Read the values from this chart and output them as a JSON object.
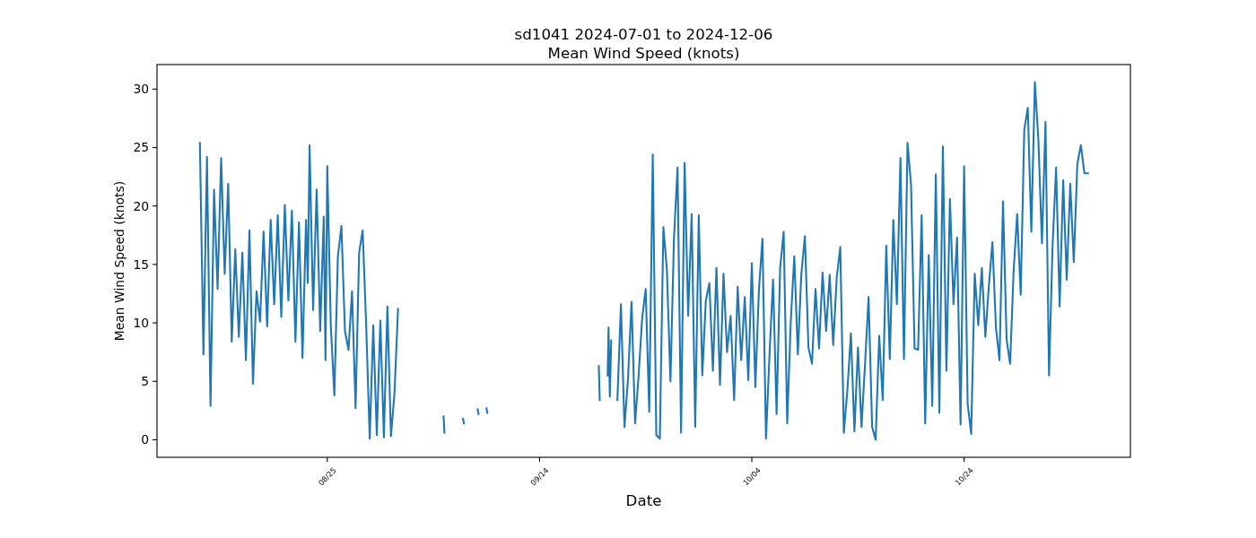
{
  "chart_data": {
    "type": "line",
    "title": "sd1041 2024-07-01 to 2024-12-06",
    "subtitle": "Mean Wind Speed (knots)",
    "xlabel": "Date",
    "ylabel": "Mean Wind Speed (knots)",
    "x": [
      "--08-13T00:00",
      "--08-13T08:00",
      "--08-13T16:00",
      "--08-14T00:00",
      "--08-14T08:00",
      "--08-14T16:00",
      "--08-15T00:00",
      "--08-15T08:00",
      "--08-15T16:00",
      "--08-16T00:00",
      "--08-16T08:00",
      "--08-16T16:00",
      "--08-17T00:00",
      "--08-17T08:00",
      "--08-17T16:00",
      "--08-18T00:00",
      "--08-18T08:00",
      "--08-18T16:00",
      "--08-19T00:00",
      "--08-19T08:00",
      "--08-19T16:00",
      "--08-20T00:00",
      "--08-20T08:00",
      "--08-20T16:00",
      "--08-21T00:00",
      "--08-21T08:00",
      "--08-21T16:00",
      "--08-22T00:00",
      "--08-22T08:00",
      "--08-22T16:00",
      "--08-23T00:00",
      "--08-23T04:00",
      "--08-23T08:00",
      "--08-23T16:00",
      "--08-24T00:00",
      "--08-24T08:00",
      "--08-24T16:00",
      "--08-24T20:00",
      "--08-25T00:00",
      "--08-25T08:00",
      "--08-25T16:00",
      "--08-26T00:00",
      "--08-26T08:00",
      "--08-26T16:00",
      "--08-27T00:00",
      "--08-27T08:00",
      "--08-27T16:00",
      "--08-28T00:00",
      "--08-28T08:00",
      "--08-28T16:00",
      "--08-29T00:00",
      "--08-29T08:00",
      "--08-29T16:00",
      "--08-30T00:00",
      "--08-30T08:00",
      "--08-30T16:00",
      "--08-31T00:00",
      "--08-31T08:00",
      "--08-31T16:00",
      "--09-02T00:00",
      "--09-04T23:00",
      "--09-05T01:00",
      "--09-06T00:00",
      "--09-06T19:00",
      "--09-06T21:00",
      "--09-07T12:00",
      "--09-08T04:00",
      "--09-08T06:00",
      "--09-08T15:00",
      "--09-09T00:00",
      "--09-09T02:00",
      "--09-14T00:00",
      "--09-19T14:00",
      "--09-19T16:00",
      "--09-20T01:00",
      "--09-20T10:00",
      "--09-20T12:00",
      "--09-20T15:00",
      "--09-20T18:00",
      "--09-21T01:00",
      "--09-21T08:00",
      "--09-21T16:00",
      "--09-22T00:00",
      "--09-22T08:00",
      "--09-22T16:00",
      "--09-23T00:00",
      "--09-23T08:00",
      "--09-23T16:00",
      "--09-24T00:00",
      "--09-24T08:00",
      "--09-24T16:00",
      "--09-25T00:00",
      "--09-25T08:00",
      "--09-25T16:00",
      "--09-26T00:00",
      "--09-26T08:00",
      "--09-26T16:00",
      "--09-27T00:00",
      "--09-27T08:00",
      "--09-27T16:00",
      "--09-28T00:00",
      "--09-28T08:00",
      "--09-28T16:00",
      "--09-29T00:00",
      "--09-29T08:00",
      "--09-29T16:00",
      "--09-30T00:00",
      "--09-30T08:00",
      "--09-30T16:00",
      "--10-01T00:00",
      "--10-01T08:00",
      "--10-01T16:00",
      "--10-02T00:00",
      "--10-02T08:00",
      "--10-02T16:00",
      "--10-03T00:00",
      "--10-03T08:00",
      "--10-03T16:00",
      "--10-04T00:00",
      "--10-04T08:00",
      "--10-04T16:00",
      "--10-05T00:00",
      "--10-05T08:00",
      "--10-05T16:00",
      "--10-06T00:00",
      "--10-06T08:00",
      "--10-06T16:00",
      "--10-07T00:00",
      "--10-07T08:00",
      "--10-07T16:00",
      "--10-08T00:00",
      "--10-08T08:00",
      "--10-08T16:00",
      "--10-09T00:00",
      "--10-09T08:00",
      "--10-09T16:00",
      "--10-10T00:00",
      "--10-10T08:00",
      "--10-10T16:00",
      "--10-11T00:00",
      "--10-11T08:00",
      "--10-11T16:00",
      "--10-12T00:00",
      "--10-12T08:00",
      "--10-12T16:00",
      "--10-13T00:00",
      "--10-13T08:00",
      "--10-13T16:00",
      "--10-14T00:00",
      "--10-14T08:00",
      "--10-14T16:00",
      "--10-15T00:00",
      "--10-15T08:00",
      "--10-15T16:00",
      "--10-16T00:00",
      "--10-16T08:00",
      "--10-16T16:00",
      "--10-17T00:00",
      "--10-17T08:00",
      "--10-17T16:00",
      "--10-18T00:00",
      "--10-18T08:00",
      "--10-18T16:00",
      "--10-19T00:00",
      "--10-19T08:00",
      "--10-19T16:00",
      "--10-20T00:00",
      "--10-20T08:00",
      "--10-20T16:00",
      "--10-21T00:00",
      "--10-21T08:00",
      "--10-21T16:00",
      "--10-22T00:00",
      "--10-22T08:00",
      "--10-22T16:00",
      "--10-23T00:00",
      "--10-23T08:00",
      "--10-23T16:00",
      "--10-24T00:00",
      "--10-24T08:00",
      "--10-24T16:00",
      "--10-25T00:00",
      "--10-25T08:00",
      "--10-25T16:00",
      "--10-26T00:00",
      "--10-26T08:00",
      "--10-26T16:00",
      "--10-27T00:00",
      "--10-27T08:00",
      "--10-27T16:00",
      "--10-28T00:00",
      "--10-28T08:00",
      "--10-28T16:00",
      "--10-29T00:00",
      "--10-29T08:00",
      "--10-29T16:00",
      "--10-30T00:00",
      "--10-30T08:00",
      "--10-30T16:00",
      "--10-31T00:00",
      "--10-31T08:00",
      "--10-31T16:00",
      "--11-01T00:00",
      "--11-01T08:00",
      "--11-01T16:00",
      "--11-02T00:00",
      "--11-02T08:00",
      "--11-02T16:00",
      "--11-03T00:00",
      "--11-03T08:00",
      "--11-03T16:00",
      "--11-04T00:00",
      "--11-04T08:00",
      "--11-04T16:00"
    ],
    "series": [
      {
        "color": "#1f77b4",
        "values": [
          25.4,
          7.3,
          24.2,
          2.9,
          21.4,
          12.9,
          24.1,
          14.2,
          21.9,
          8.4,
          16.3,
          8.8,
          16.0,
          6.8,
          17.9,
          4.8,
          12.7,
          10.1,
          17.8,
          9.7,
          18.8,
          11.6,
          19.2,
          10.5,
          20.1,
          11.9,
          19.6,
          8.4,
          18.6,
          7.0,
          18.8,
          13.4,
          25.2,
          11.1,
          21.4,
          9.3,
          19.1,
          6.8,
          23.4,
          9.8,
          3.8,
          15.7,
          18.3,
          9.3,
          7.7,
          12.7,
          2.7,
          16.0,
          17.9,
          9.8,
          0.1,
          9.8,
          0.4,
          10.2,
          0.2,
          11.4,
          0.3,
          4.0,
          11.2,
          null,
          2.0,
          0.6,
          null,
          1.8,
          1.4,
          null,
          2.6,
          2.2,
          null,
          2.7,
          2.3,
          null,
          6.3,
          3.4,
          null,
          5.5,
          9.6,
          3.7,
          8.5,
          null,
          3.4,
          11.6,
          1.1,
          5.2,
          11.8,
          1.4,
          5.5,
          10.4,
          12.9,
          2.4,
          24.4,
          0.4,
          0.1,
          18.2,
          14.5,
          5.0,
          17.3,
          23.3,
          0.6,
          23.7,
          10.6,
          19.3,
          1.1,
          19.2,
          5.5,
          11.9,
          13.4,
          5.9,
          14.7,
          4.7,
          14.2,
          7.5,
          10.6,
          3.4,
          13.1,
          6.8,
          12.2,
          5.1,
          15.1,
          4.5,
          12.8,
          17.2,
          0.1,
          7.3,
          13.7,
          2.2,
          14.7,
          17.8,
          1.4,
          10.1,
          15.7,
          7.3,
          14.2,
          17.4,
          7.9,
          6.5,
          12.9,
          7.8,
          14.3,
          9.3,
          14.1,
          8.1,
          13.9,
          16.5,
          0.6,
          4.2,
          9.1,
          0.7,
          7.9,
          1.1,
          6.5,
          12.2,
          1.1,
          0.0,
          8.9,
          3.4,
          16.6,
          6.9,
          18.8,
          11.6,
          24.1,
          6.9,
          25.4,
          21.8,
          7.8,
          7.7,
          19.2,
          1.4,
          15.8,
          2.9,
          22.7,
          2.3,
          25.1,
          5.9,
          20.6,
          11.6,
          17.3,
          1.3,
          23.4,
          3.1,
          0.5,
          14.2,
          9.8,
          14.7,
          8.8,
          13.2,
          16.9,
          9.6,
          6.8,
          20.4,
          8.6,
          6.5,
          14.5,
          19.3,
          12.4,
          26.5,
          28.4,
          17.8,
          30.6,
          25.6,
          16.8,
          27.2,
          5.5,
          16.6,
          23.3,
          11.4,
          22.2,
          13.7,
          21.9,
          15.2,
          23.6,
          25.2,
          22.8,
          22.8
        ]
      }
    ],
    "xlim": [
      "--08-08T23:00",
      "--11-08T16:00"
    ],
    "xticks": [
      {
        "value": "--08-25",
        "label": "08/25"
      },
      {
        "value": "--09-14",
        "label": "09/14"
      },
      {
        "value": "--10-04",
        "label": "10/04"
      },
      {
        "value": "--10-24",
        "label": "10/24"
      }
    ],
    "ylim": [
      -1.5,
      32.1
    ],
    "yticks": [
      0,
      5,
      10,
      15,
      20,
      25,
      30
    ]
  }
}
